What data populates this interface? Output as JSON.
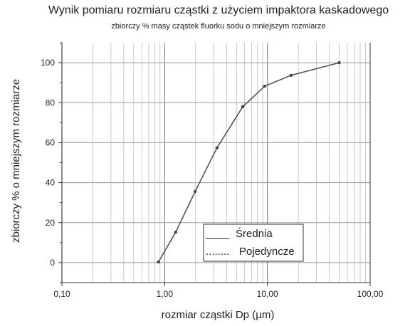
{
  "chart_data": {
    "type": "line",
    "title": "Wynik pomiaru rozmiaru cząstki z użyciem impaktora kaskadowego",
    "subtitle": "zbiorczy % masy cząstek fluorku sodu o mniejszym rozmiarze",
    "xlabel": "rozmiar cząstki Dp (µm)",
    "ylabel": "zbiorczy % o mniejszym rozmiarze",
    "x_scale": "log",
    "xlim": [
      0.1,
      100
    ],
    "ylim": [
      -10,
      110
    ],
    "x_ticks": [
      0.1,
      1,
      10,
      100
    ],
    "x_tick_labels": [
      "0,10",
      "1,00",
      "10,00",
      "100,00"
    ],
    "y_ticks": [
      0,
      20,
      40,
      60,
      80,
      100
    ],
    "y_tick_labels": [
      "0",
      "20",
      "40",
      "60",
      "80",
      "100"
    ],
    "grid": true,
    "series": [
      {
        "name": "Średnia",
        "x": [
          0.87,
          1.28,
          1.98,
          3.23,
          5.76,
          9.38,
          17.0,
          50.0
        ],
        "y": [
          0.3,
          15.2,
          35.6,
          57.4,
          78.0,
          88.2,
          93.7,
          100.0
        ]
      }
    ],
    "legend": {
      "position": "bottom-right",
      "entries": [
        {
          "style": "____",
          "label": "Średnia"
        },
        {
          "style": "........",
          "label": "Pojedyncze"
        }
      ]
    },
    "colors": {
      "line": "#555555",
      "grid": "#bbbbbb",
      "axis": "#333333"
    }
  }
}
